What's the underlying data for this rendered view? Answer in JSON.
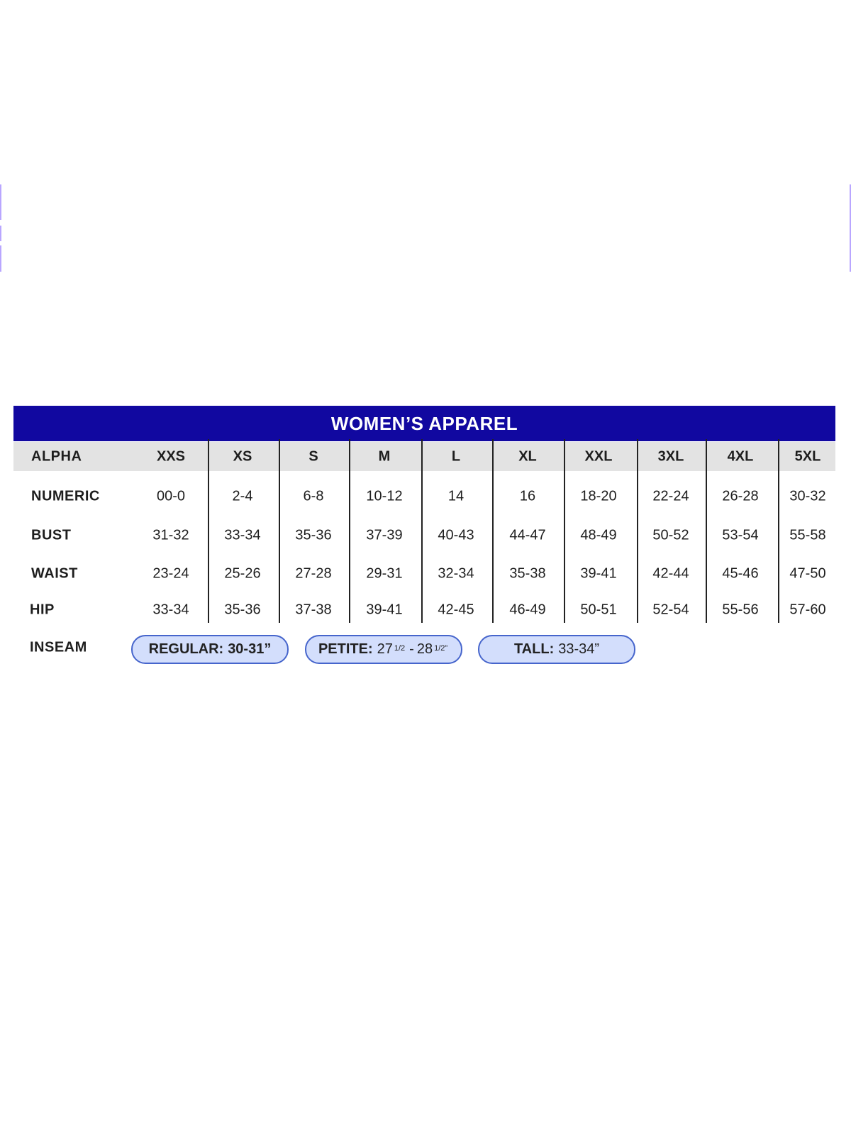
{
  "title": "WOMEN’S APPAREL",
  "colors": {
    "title_bar": "#1108a0",
    "alpha_band": "#e3e3e3",
    "pill_fill": "#d3defc",
    "pill_border": "#4665cc"
  },
  "rows": [
    {
      "label": "ALPHA",
      "values": [
        "XXS",
        "XS",
        "S",
        "M",
        "L",
        "XL",
        "XXL",
        "3XL",
        "4XL",
        "5XL"
      ]
    },
    {
      "label": "NUMERIC",
      "values": [
        "00-0",
        "2-4",
        "6-8",
        "10-12",
        "14",
        "16",
        "18-20",
        "22-24",
        "26-28",
        "30-32"
      ]
    },
    {
      "label": "BUST",
      "values": [
        "31-32",
        "33-34",
        "35-36",
        "37-39",
        "40-43",
        "44-47",
        "48-49",
        "50-52",
        "53-54",
        "55-58"
      ]
    },
    {
      "label": "WAIST",
      "values": [
        "23-24",
        "25-26",
        "27-28",
        "29-31",
        "32-34",
        "35-38",
        "39-41",
        "42-44",
        "45-46",
        "47-50"
      ]
    },
    {
      "label": "HIP",
      "values": [
        "33-34",
        "35-36",
        "37-38",
        "39-41",
        "42-45",
        "46-49",
        "50-51",
        "52-54",
        "55-56",
        "57-60"
      ]
    }
  ],
  "inseam": {
    "label": "INSEAM",
    "regular": {
      "name": "REGULAR:",
      "value": "30-31”"
    },
    "petite": {
      "name": "PETITE:",
      "value_a": "27",
      "frac_a": "1/2",
      "sep": "-",
      "value_b": "28",
      "frac_b": "1/2”"
    },
    "tall": {
      "name": "TALL:",
      "value": "33-34”"
    }
  }
}
